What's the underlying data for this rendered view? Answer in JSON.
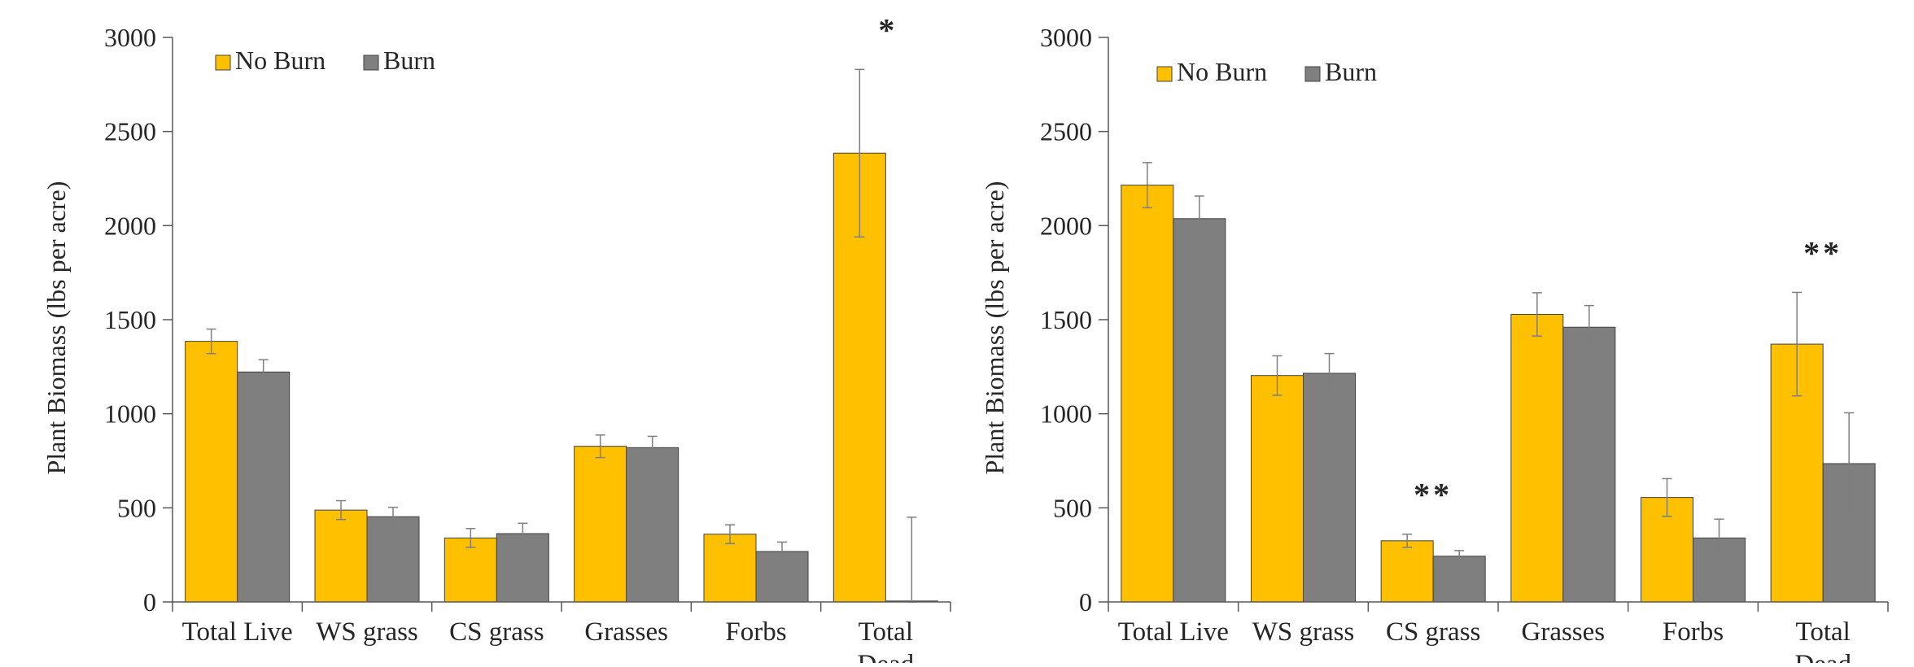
{
  "colors": {
    "no_burn": "#FFC000",
    "burn": "#7F7F7F",
    "axis": "#595959",
    "error_bar": "#7F7F7F",
    "text": "#262626"
  },
  "chart_data": [
    {
      "type": "bar",
      "ylabel": "Plant Biomass (lbs per acre)",
      "ylim": [
        0,
        3000
      ],
      "yticks": [
        0,
        500,
        1000,
        1500,
        2000,
        2500,
        3000
      ],
      "categories": [
        "Total Live",
        "WS grass",
        "CS grass",
        "Grasses",
        "Forbs",
        "Total Dead"
      ],
      "legend_position": "top-left",
      "grid": false,
      "series": [
        {
          "name": "No Burn",
          "color": "#FFC000",
          "values": [
            1385,
            488,
            340,
            827,
            360,
            2385
          ],
          "errors": [
            65,
            50,
            50,
            60,
            50,
            445
          ]
        },
        {
          "name": "Burn",
          "color": "#7F7F7F",
          "values": [
            1222,
            453,
            363,
            820,
            268,
            5
          ],
          "errors": [
            65,
            50,
            55,
            60,
            50,
            445
          ]
        }
      ],
      "significance": [
        {
          "category": "Total Dead",
          "label": "*"
        }
      ]
    },
    {
      "type": "bar",
      "ylabel": "Plant Biomass (lbs per acre)",
      "ylim": [
        0,
        3000
      ],
      "yticks": [
        0,
        500,
        1000,
        1500,
        2000,
        2500,
        3000
      ],
      "categories": [
        "Total Live",
        "WS grass",
        "CS grass",
        "Grasses",
        "Forbs",
        "Total Dead"
      ],
      "legend_position": "top-left",
      "grid": false,
      "series": [
        {
          "name": "No Burn",
          "color": "#FFC000",
          "values": [
            2215,
            1203,
            325,
            1528,
            555,
            1370
          ],
          "errors": [
            120,
            105,
            35,
            115,
            100,
            275
          ]
        },
        {
          "name": "Burn",
          "color": "#7F7F7F",
          "values": [
            2037,
            1215,
            243,
            1460,
            340,
            735
          ],
          "errors": [
            120,
            105,
            30,
            115,
            100,
            270
          ]
        }
      ],
      "significance": [
        {
          "category": "CS grass",
          "label": "**"
        },
        {
          "category": "Total Dead",
          "label": "**"
        }
      ]
    }
  ]
}
